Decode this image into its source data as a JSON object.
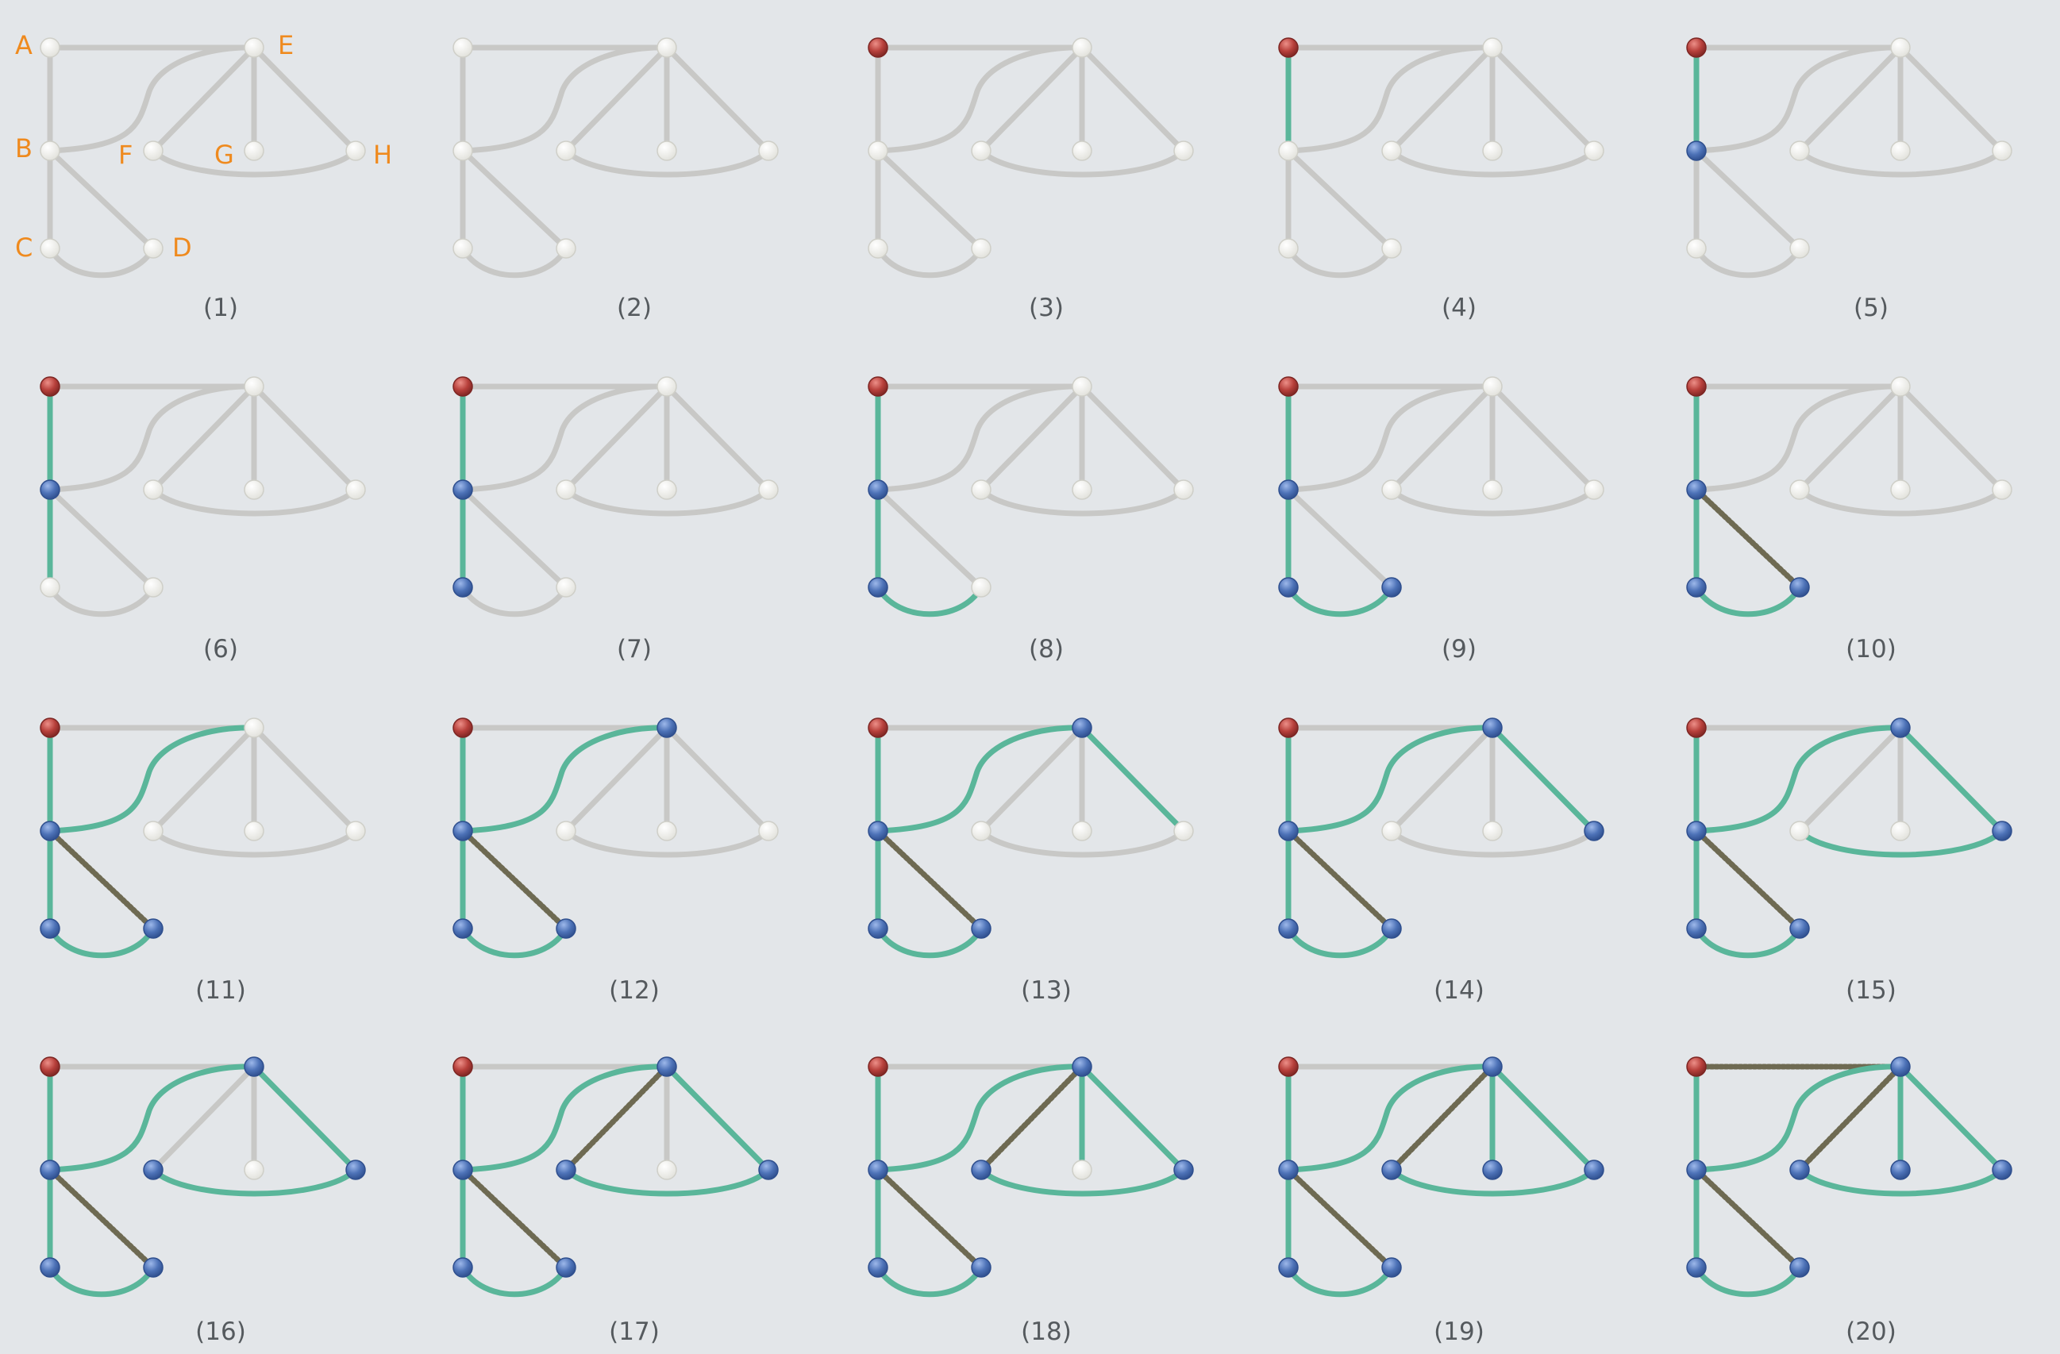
{
  "colors": {
    "background": "#e3e6e9",
    "edge_unvisited": "#c8c8c6",
    "edge_tree": "#5ab69a",
    "edge_back": "#6e6a52",
    "node_unvisited": "#f1f1ec",
    "node_visited": "#4d72b7",
    "node_start": "#b7403b",
    "label": "#ef8a1e",
    "caption": "#555a5e"
  },
  "vertex_labels": [
    "A",
    "B",
    "C",
    "D",
    "E",
    "F",
    "G",
    "H"
  ],
  "edges": [
    {
      "id": "AE",
      "from": "A",
      "to": "E"
    },
    {
      "id": "AB",
      "from": "A",
      "to": "B"
    },
    {
      "id": "BE",
      "from": "B",
      "to": "E"
    },
    {
      "id": "BC",
      "from": "B",
      "to": "C"
    },
    {
      "id": "BD",
      "from": "B",
      "to": "D"
    },
    {
      "id": "CD",
      "from": "C",
      "to": "D"
    },
    {
      "id": "EF",
      "from": "E",
      "to": "F"
    },
    {
      "id": "EG",
      "from": "E",
      "to": "G"
    },
    {
      "id": "EH",
      "from": "E",
      "to": "H"
    },
    {
      "id": "FH",
      "from": "F",
      "to": "H"
    }
  ],
  "steps": [
    {
      "caption": "(1)",
      "show_labels": true,
      "start": "",
      "visited": [],
      "tree": [],
      "back": []
    },
    {
      "caption": "(2)",
      "show_labels": false,
      "start": "",
      "visited": [],
      "tree": [],
      "back": []
    },
    {
      "caption": "(3)",
      "show_labels": false,
      "start": "A",
      "visited": [],
      "tree": [],
      "back": []
    },
    {
      "caption": "(4)",
      "show_labels": false,
      "start": "A",
      "visited": [],
      "tree": [
        "AB"
      ],
      "back": []
    },
    {
      "caption": "(5)",
      "show_labels": false,
      "start": "A",
      "visited": [
        "B"
      ],
      "tree": [
        "AB"
      ],
      "back": []
    },
    {
      "caption": "(6)",
      "show_labels": false,
      "start": "A",
      "visited": [
        "B"
      ],
      "tree": [
        "AB",
        "BC"
      ],
      "back": []
    },
    {
      "caption": "(7)",
      "show_labels": false,
      "start": "A",
      "visited": [
        "B",
        "C"
      ],
      "tree": [
        "AB",
        "BC"
      ],
      "back": []
    },
    {
      "caption": "(8)",
      "show_labels": false,
      "start": "A",
      "visited": [
        "B",
        "C"
      ],
      "tree": [
        "AB",
        "BC",
        "CD"
      ],
      "back": []
    },
    {
      "caption": "(9)",
      "show_labels": false,
      "start": "A",
      "visited": [
        "B",
        "C",
        "D"
      ],
      "tree": [
        "AB",
        "BC",
        "CD"
      ],
      "back": []
    },
    {
      "caption": "(10)",
      "show_labels": false,
      "start": "A",
      "visited": [
        "B",
        "C",
        "D"
      ],
      "tree": [
        "AB",
        "BC",
        "CD"
      ],
      "back": [
        "BD"
      ]
    },
    {
      "caption": "(11)",
      "show_labels": false,
      "start": "A",
      "visited": [
        "B",
        "C",
        "D"
      ],
      "tree": [
        "AB",
        "BC",
        "CD",
        "BE"
      ],
      "back": [
        "BD"
      ]
    },
    {
      "caption": "(12)",
      "show_labels": false,
      "start": "A",
      "visited": [
        "B",
        "C",
        "D",
        "E"
      ],
      "tree": [
        "AB",
        "BC",
        "CD",
        "BE"
      ],
      "back": [
        "BD"
      ]
    },
    {
      "caption": "(13)",
      "show_labels": false,
      "start": "A",
      "visited": [
        "B",
        "C",
        "D",
        "E"
      ],
      "tree": [
        "AB",
        "BC",
        "CD",
        "BE",
        "EH"
      ],
      "back": [
        "BD"
      ]
    },
    {
      "caption": "(14)",
      "show_labels": false,
      "start": "A",
      "visited": [
        "B",
        "C",
        "D",
        "E",
        "H"
      ],
      "tree": [
        "AB",
        "BC",
        "CD",
        "BE",
        "EH"
      ],
      "back": [
        "BD"
      ]
    },
    {
      "caption": "(15)",
      "show_labels": false,
      "start": "A",
      "visited": [
        "B",
        "C",
        "D",
        "E",
        "H"
      ],
      "tree": [
        "AB",
        "BC",
        "CD",
        "BE",
        "EH",
        "FH"
      ],
      "back": [
        "BD"
      ]
    },
    {
      "caption": "(16)",
      "show_labels": false,
      "start": "A",
      "visited": [
        "B",
        "C",
        "D",
        "E",
        "H",
        "F"
      ],
      "tree": [
        "AB",
        "BC",
        "CD",
        "BE",
        "EH",
        "FH"
      ],
      "back": [
        "BD"
      ]
    },
    {
      "caption": "(17)",
      "show_labels": false,
      "start": "A",
      "visited": [
        "B",
        "C",
        "D",
        "E",
        "H",
        "F"
      ],
      "tree": [
        "AB",
        "BC",
        "CD",
        "BE",
        "EH",
        "FH"
      ],
      "back": [
        "BD",
        "EF"
      ]
    },
    {
      "caption": "(18)",
      "show_labels": false,
      "start": "A",
      "visited": [
        "B",
        "C",
        "D",
        "E",
        "H",
        "F"
      ],
      "tree": [
        "AB",
        "BC",
        "CD",
        "BE",
        "EH",
        "FH",
        "EG"
      ],
      "back": [
        "BD",
        "EF"
      ]
    },
    {
      "caption": "(19)",
      "show_labels": false,
      "start": "A",
      "visited": [
        "B",
        "C",
        "D",
        "E",
        "H",
        "F",
        "G"
      ],
      "tree": [
        "AB",
        "BC",
        "CD",
        "BE",
        "EH",
        "FH",
        "EG"
      ],
      "back": [
        "BD",
        "EF"
      ]
    },
    {
      "caption": "(20)",
      "show_labels": false,
      "start": "A",
      "visited": [
        "B",
        "C",
        "D",
        "E",
        "H",
        "F",
        "G"
      ],
      "tree": [
        "AB",
        "BC",
        "CD",
        "BE",
        "EH",
        "FH",
        "EG"
      ],
      "back": [
        "BD",
        "EF",
        "AE"
      ]
    }
  ]
}
